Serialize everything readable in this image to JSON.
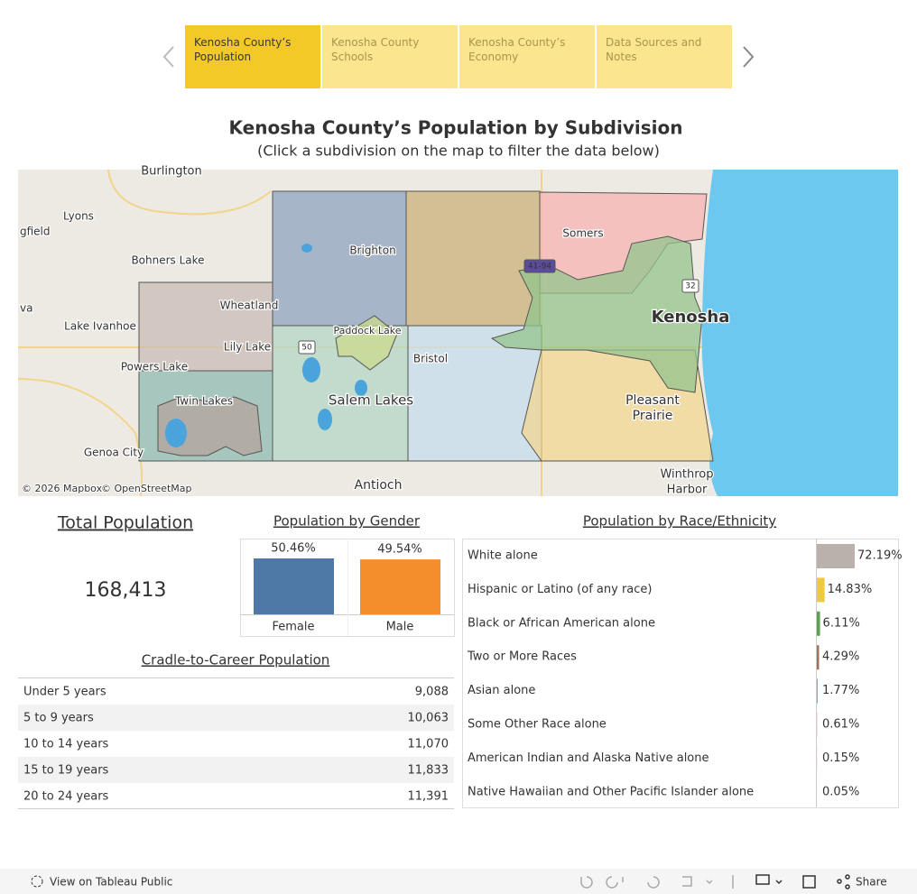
{
  "nav": {
    "tabs": [
      "Kenosha County’s Population",
      "Kenosha County Schools",
      "Kenosha County’s Economy",
      "Data Sources and Notes"
    ]
  },
  "header": {
    "title": "Kenosha County’s Population by Subdivision",
    "subtitle": "(Click a subdivision on the map to filter the data below)"
  },
  "map": {
    "labels": [
      "Burlington",
      "Lyons",
      "gfield",
      "Bohners Lake",
      "va",
      "Lake Ivanhoe",
      "Wheatland",
      "Lily Lake",
      "Powers Lake",
      "Twin Lakes",
      "Genoa City",
      "Brighton",
      "Paddock Lake",
      "Salem Lakes",
      "Bristol",
      "Somers",
      "Kenosha",
      "Pleasant",
      "Prairie",
      "Winthrop",
      "Harbor",
      "Antioch"
    ],
    "shields": [
      "41-94",
      "50",
      "32"
    ],
    "attribution": [
      "© 2026 Mapbox",
      "© OpenStreetMap"
    ]
  },
  "total": {
    "title": "Total Population",
    "value": "168,413"
  },
  "chart_data": [
    {
      "type": "bar",
      "title": "Population by Gender",
      "categories": [
        "Female",
        "Male"
      ],
      "values": [
        50.46,
        49.54
      ],
      "value_labels": [
        "50.46%",
        "49.54%"
      ],
      "colors": [
        "#4e79a7",
        "#f28e2b"
      ]
    },
    {
      "type": "hbar",
      "title": "Population by Race/Ethnicity",
      "categories": [
        "White alone",
        "Hispanic or Latino (of any race)",
        "Black or African American alone",
        "Two or More Races",
        "Asian alone",
        "Some Other Race alone",
        "American Indian and Alaska Native alone",
        "Native Hawaiian and Other Pacific Islander alone"
      ],
      "values": [
        72.19,
        14.83,
        6.11,
        4.29,
        1.77,
        0.61,
        0.15,
        0.05
      ],
      "value_labels": [
        "72.19%",
        "14.83%",
        "6.11%",
        "4.29%",
        "1.77%",
        "0.61%",
        "0.15%",
        "0.05%"
      ],
      "colors": [
        "#bab0ac",
        "#edc948",
        "#59a14f",
        "#9c755f",
        "#76b7b2",
        "#ff9da7",
        "#e15759",
        "#b07aa1"
      ]
    }
  ],
  "table": {
    "title": "Cradle-to-Career Population",
    "rows": [
      [
        "Under 5 years",
        "9,088"
      ],
      [
        "5 to 9 years",
        "10,063"
      ],
      [
        "10 to 14 years",
        "11,070"
      ],
      [
        "15 to 19 years",
        "11,833"
      ],
      [
        "20 to 24 years",
        "11,391"
      ]
    ]
  },
  "footer": {
    "left": "View on Tableau Public",
    "right": "Share"
  }
}
